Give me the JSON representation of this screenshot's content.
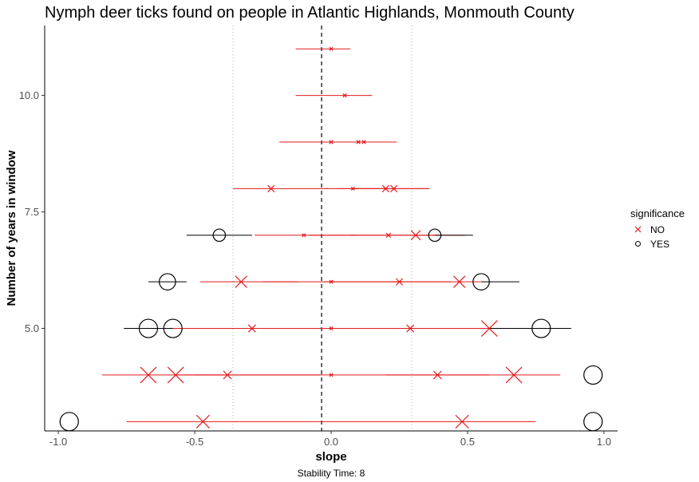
{
  "chart_data": {
    "type": "scatter",
    "title": "Nymph deer ticks found on people in Atlantic Highlands, Monmouth County",
    "xlabel": "slope",
    "ylabel": "Number of years in window",
    "caption": "Stability Time: 8",
    "xlim": [
      -1.05,
      1.05
    ],
    "ylim": [
      2.8,
      11.5
    ],
    "xticks": [
      -1.0,
      -0.5,
      0.0,
      0.5,
      1.0
    ],
    "xtick_labels": [
      "-1.0",
      "-0.5",
      "0.0",
      "0.5",
      "1.0"
    ],
    "yticks": [
      5.0,
      7.5,
      10.0
    ],
    "ytick_labels": [
      "5.0",
      "7.5",
      "10.0"
    ],
    "vlines": {
      "dashed": -0.035,
      "dotted": [
        -0.36,
        0.295
      ]
    },
    "grid": false,
    "legend": {
      "title": "significance",
      "placement": "right",
      "entries": [
        {
          "label": "NO",
          "marker": "x",
          "color": "#e41a1c"
        },
        {
          "label": "YES",
          "marker": "circle",
          "color": "#000000"
        }
      ]
    },
    "colors": {
      "NO": "#e41a1c",
      "YES": "#000000"
    },
    "points": [
      {
        "y": 11,
        "slope": 0.0,
        "lo": -0.13,
        "hi": 0.07,
        "sig": "NO",
        "size": 0.12
      },
      {
        "y": 10,
        "slope": 0.05,
        "lo": -0.13,
        "hi": 0.15,
        "sig": "NO",
        "size": 0.14
      },
      {
        "y": 9,
        "slope": 0.0,
        "lo": -0.19,
        "hi": 0.24,
        "sig": "NO",
        "size": 0.15
      },
      {
        "y": 9,
        "slope": 0.1,
        "lo": 0.1,
        "hi": 0.1,
        "sig": "NO",
        "size": 0.14
      },
      {
        "y": 9,
        "slope": 0.12,
        "lo": 0.12,
        "hi": 0.12,
        "sig": "NO",
        "size": 0.14
      },
      {
        "y": 8,
        "slope": -0.22,
        "lo": -0.36,
        "hi": -0.01,
        "sig": "NO",
        "size": 0.35
      },
      {
        "y": 8,
        "slope": 0.08,
        "lo": -0.02,
        "hi": 0.18,
        "sig": "NO",
        "size": 0.12
      },
      {
        "y": 8,
        "slope": 0.2,
        "lo": 0.02,
        "hi": 0.36,
        "sig": "NO",
        "size": 0.35
      },
      {
        "y": 8,
        "slope": 0.23,
        "lo": 0.09,
        "hi": 0.36,
        "sig": "NO",
        "size": 0.35
      },
      {
        "y": 7,
        "slope": -0.41,
        "lo": -0.53,
        "hi": -0.29,
        "sig": "YES",
        "size": 0.55
      },
      {
        "y": 7,
        "slope": -0.1,
        "lo": -0.28,
        "hi": 0.09,
        "sig": "NO",
        "size": 0.12
      },
      {
        "y": 7,
        "slope": 0.21,
        "lo": -0.08,
        "hi": 0.49,
        "sig": "NO",
        "size": 0.2
      },
      {
        "y": 7,
        "slope": 0.31,
        "lo": 0.07,
        "hi": 0.38,
        "sig": "NO",
        "size": 0.55
      },
      {
        "y": 7,
        "slope": 0.38,
        "lo": 0.38,
        "hi": 0.52,
        "sig": "YES",
        "size": 0.55
      },
      {
        "y": 6,
        "slope": -0.6,
        "lo": -0.67,
        "hi": -0.53,
        "sig": "YES",
        "size": 0.85
      },
      {
        "y": 6,
        "slope": -0.33,
        "lo": -0.48,
        "hi": -0.12,
        "sig": "NO",
        "size": 0.7
      },
      {
        "y": 6,
        "slope": 0.0,
        "lo": -0.25,
        "hi": 0.26,
        "sig": "NO",
        "size": 0.12
      },
      {
        "y": 6,
        "slope": 0.25,
        "lo": -0.03,
        "hi": 0.44,
        "sig": "NO",
        "size": 0.35
      },
      {
        "y": 6,
        "slope": 0.47,
        "lo": 0.22,
        "hi": 0.55,
        "sig": "NO",
        "size": 0.7
      },
      {
        "y": 6,
        "slope": 0.55,
        "lo": 0.55,
        "hi": 0.69,
        "sig": "YES",
        "size": 0.85
      },
      {
        "y": 5,
        "slope": -0.67,
        "lo": -0.76,
        "hi": -0.58,
        "sig": "YES",
        "size": 1.0
      },
      {
        "y": 5,
        "slope": -0.58,
        "lo": -0.58,
        "hi": -0.3,
        "sig": "YES",
        "size": 1.0
      },
      {
        "y": 5,
        "slope": -0.29,
        "lo": -0.58,
        "hi": -0.02,
        "sig": "NO",
        "size": 0.4
      },
      {
        "y": 5,
        "slope": 0.0,
        "lo": -0.3,
        "hi": 0.29,
        "sig": "NO",
        "size": 0.12
      },
      {
        "y": 5,
        "slope": 0.29,
        "lo": 0.0,
        "hi": 0.58,
        "sig": "NO",
        "size": 0.4
      },
      {
        "y": 5,
        "slope": 0.58,
        "lo": 0.29,
        "hi": 0.77,
        "sig": "NO",
        "size": 1.0
      },
      {
        "y": 5,
        "slope": 0.77,
        "lo": 0.58,
        "hi": 0.88,
        "sig": "YES",
        "size": 1.0
      },
      {
        "y": 4,
        "slope": -0.67,
        "lo": -0.84,
        "hi": -0.39,
        "sig": "NO",
        "size": 1.0
      },
      {
        "y": 4,
        "slope": -0.57,
        "lo": -0.57,
        "hi": -0.2,
        "sig": "NO",
        "size": 1.0
      },
      {
        "y": 4,
        "slope": -0.38,
        "lo": -0.5,
        "hi": -0.04,
        "sig": "NO",
        "size": 0.45
      },
      {
        "y": 4,
        "slope": 0.0,
        "lo": -0.2,
        "hi": 0.4,
        "sig": "NO",
        "size": 0.12
      },
      {
        "y": 4,
        "slope": 0.39,
        "lo": 0.2,
        "hi": 0.58,
        "sig": "NO",
        "size": 0.45
      },
      {
        "y": 4,
        "slope": 0.67,
        "lo": 0.39,
        "hi": 0.84,
        "sig": "NO",
        "size": 1.0
      },
      {
        "y": 4,
        "slope": 0.96,
        "lo": 0.96,
        "hi": 0.96,
        "sig": "YES",
        "size": 1.0
      },
      {
        "y": 3,
        "slope": -0.96,
        "lo": -0.96,
        "hi": -0.96,
        "sig": "YES",
        "size": 1.0
      },
      {
        "y": 3,
        "slope": -0.47,
        "lo": -0.75,
        "hi": 0.0,
        "sig": "NO",
        "size": 0.8
      },
      {
        "y": 3,
        "slope": 0.48,
        "lo": 0.0,
        "hi": 0.75,
        "sig": "NO",
        "size": 0.8
      },
      {
        "y": 3,
        "slope": 0.96,
        "lo": 0.96,
        "hi": 0.96,
        "sig": "YES",
        "size": 1.0
      }
    ]
  }
}
